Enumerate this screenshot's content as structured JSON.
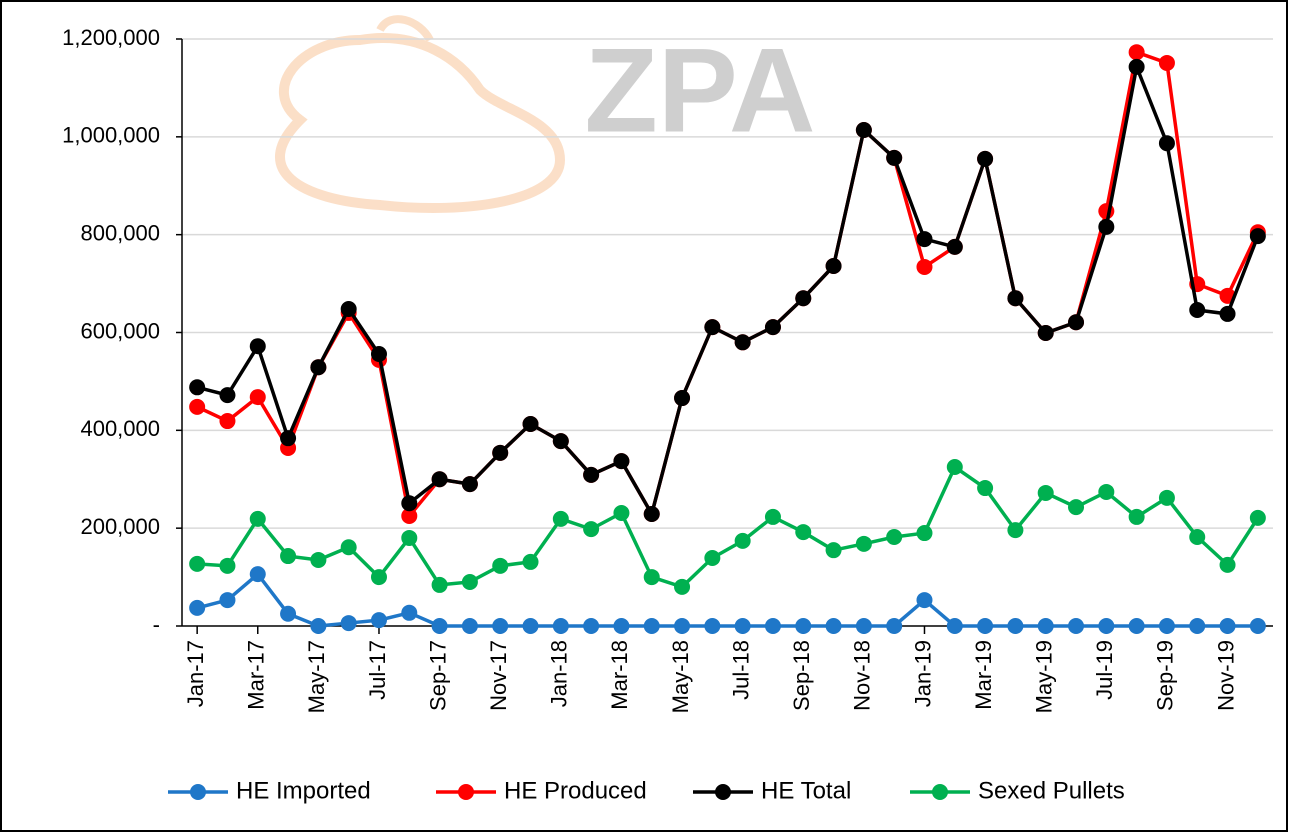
{
  "chart_data": {
    "type": "line",
    "watermark": "ZPA",
    "categories": [
      "Jan-17",
      null,
      "Mar-17",
      null,
      "May-17",
      null,
      "Jul-17",
      null,
      "Sep-17",
      null,
      "Nov-17",
      null,
      "Jan-18",
      null,
      "Mar-18",
      null,
      "May-18",
      null,
      "Jul-18",
      null,
      "Sep-18",
      null,
      "Nov-18",
      null,
      "Jan-19",
      null,
      "Mar-19",
      null,
      "May-19",
      null,
      "Jul-19",
      null,
      "Sep-19",
      null,
      "Nov-19",
      null
    ],
    "series": [
      {
        "name": "HE Imported",
        "color": "#1f77c8",
        "values": [
          37000,
          53000,
          106000,
          25000,
          0,
          6000,
          12000,
          27000,
          0,
          0,
          0,
          0,
          0,
          0,
          0,
          0,
          0,
          0,
          0,
          0,
          0,
          0,
          0,
          0,
          53000,
          0,
          0,
          0,
          0,
          0,
          0,
          0,
          0,
          0,
          0,
          0
        ]
      },
      {
        "name": "HE Produced",
        "color": "#ff0000",
        "values": [
          448000,
          419000,
          468000,
          364000,
          529000,
          640000,
          544000,
          225000,
          300000,
          290000,
          354000,
          413000,
          378000,
          309000,
          337000,
          229000,
          466000,
          611000,
          580000,
          611000,
          670000,
          736000,
          1014000,
          957000,
          734000,
          775000,
          955000,
          670000,
          599000,
          621000,
          848000,
          1173000,
          1151000,
          699000,
          675000,
          805000
        ]
      },
      {
        "name": "HE Total",
        "color": "#000000",
        "values": [
          488000,
          472000,
          572000,
          384000,
          529000,
          648000,
          556000,
          251000,
          300000,
          290000,
          354000,
          413000,
          378000,
          309000,
          337000,
          229000,
          466000,
          611000,
          580000,
          611000,
          670000,
          736000,
          1014000,
          957000,
          791000,
          775000,
          955000,
          670000,
          599000,
          621000,
          816000,
          1143000,
          987000,
          646000,
          638000,
          797000
        ]
      },
      {
        "name": "Sexed Pullets",
        "color": "#00b050",
        "values": [
          127000,
          123000,
          219000,
          143000,
          135000,
          161000,
          100000,
          180000,
          84000,
          90000,
          123000,
          131000,
          219000,
          198000,
          231000,
          100000,
          80000,
          139000,
          174000,
          223000,
          192000,
          155000,
          168000,
          182000,
          190000,
          325000,
          282000,
          196000,
          272000,
          243000,
          274000,
          223000,
          262000,
          182000,
          125000,
          221000
        ]
      }
    ],
    "ylim": [
      0,
      1200000
    ],
    "yticks": [
      {
        "value": 0,
        "label": "-"
      },
      {
        "value": 200000,
        "label": "200,000"
      },
      {
        "value": 400000,
        "label": "400,000"
      },
      {
        "value": 600000,
        "label": "600,000"
      },
      {
        "value": 800000,
        "label": "800,000"
      },
      {
        "value": 1000000,
        "label": "1,000,000"
      },
      {
        "value": 1200000,
        "label": "1,200,000"
      }
    ],
    "grid": true,
    "legend": "bottom"
  }
}
